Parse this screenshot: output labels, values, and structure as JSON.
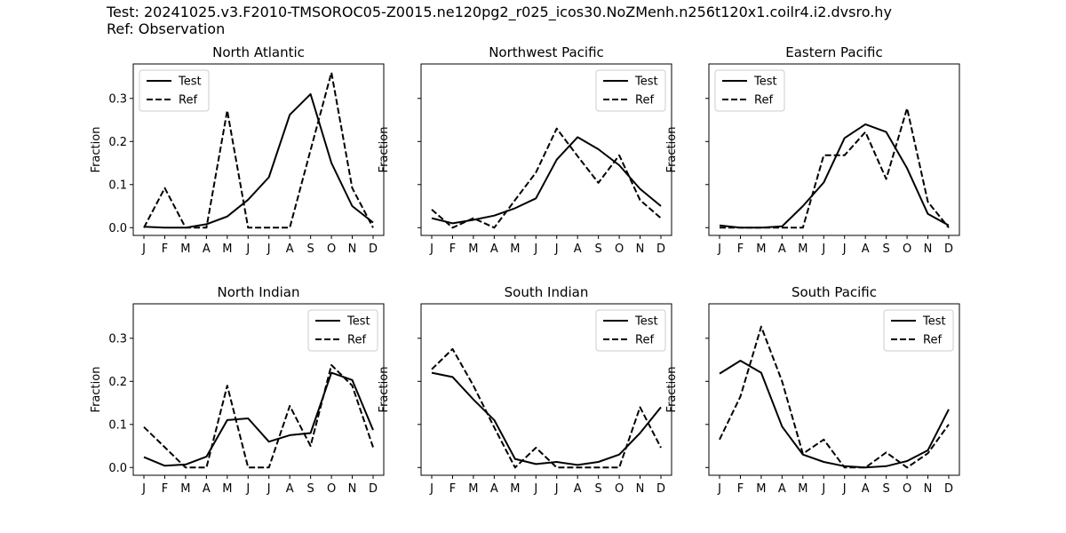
{
  "figure": {
    "test_label": "Test: 20241025.v3.F2010-TMSOROC05-Z0015.ne120pg2_r025_icos30.NoZMenh.n256t120x1.coilr4.i2.dvsro.hy",
    "ref_label": "Ref: Observation"
  },
  "chart_data": [
    {
      "type": "line",
      "title": "North Atlantic",
      "xlabel": "",
      "ylabel": "Fraction",
      "categories": [
        "J",
        "F",
        "M",
        "A",
        "M",
        "J",
        "J",
        "A",
        "S",
        "O",
        "N",
        "D"
      ],
      "ylim": [
        -0.018,
        0.38
      ],
      "yticks": [
        0.0,
        0.1,
        0.2,
        0.3
      ],
      "ytick_labels": [
        "0.0",
        "0.1",
        "0.2",
        "0.3"
      ],
      "legend": "top-left",
      "series": [
        {
          "name": "Test",
          "style": "solid",
          "values": [
            0.002,
            0.0,
            0.0,
            0.008,
            0.026,
            0.065,
            0.117,
            0.262,
            0.31,
            0.15,
            0.05,
            0.012
          ]
        },
        {
          "name": "Ref",
          "style": "dashed",
          "values": [
            0.0,
            0.092,
            0.0,
            0.0,
            0.272,
            0.0,
            0.0,
            0.0,
            0.18,
            0.36,
            0.092,
            0.0
          ]
        }
      ]
    },
    {
      "type": "line",
      "title": "Northwest Pacific",
      "xlabel": "",
      "ylabel": "Fraction",
      "categories": [
        "J",
        "F",
        "M",
        "A",
        "M",
        "J",
        "J",
        "A",
        "S",
        "O",
        "N",
        "D"
      ],
      "ylim": [
        -0.018,
        0.38
      ],
      "yticks": [
        0.0,
        0.1,
        0.2,
        0.3
      ],
      "ytick_labels": [
        "",
        "",
        "",
        ""
      ],
      "legend": "top-right",
      "series": [
        {
          "name": "Test",
          "style": "solid",
          "values": [
            0.022,
            0.01,
            0.018,
            0.028,
            0.045,
            0.068,
            0.158,
            0.21,
            0.182,
            0.145,
            0.09,
            0.05
          ]
        },
        {
          "name": "Ref",
          "style": "dashed",
          "values": [
            0.042,
            0.0,
            0.022,
            0.0,
            0.064,
            0.128,
            0.23,
            0.166,
            0.104,
            0.168,
            0.064,
            0.022
          ]
        }
      ]
    },
    {
      "type": "line",
      "title": "Eastern Pacific",
      "xlabel": "",
      "ylabel": "Fraction",
      "categories": [
        "J",
        "F",
        "M",
        "A",
        "M",
        "J",
        "J",
        "A",
        "S",
        "O",
        "N",
        "D"
      ],
      "ylim": [
        -0.018,
        0.38
      ],
      "yticks": [
        0.0,
        0.1,
        0.2,
        0.3
      ],
      "ytick_labels": [
        "",
        "",
        "",
        ""
      ],
      "legend": "top-left",
      "series": [
        {
          "name": "Test",
          "style": "solid",
          "values": [
            0.005,
            0.0,
            0.0,
            0.003,
            0.05,
            0.105,
            0.208,
            0.24,
            0.222,
            0.138,
            0.032,
            0.005
          ]
        },
        {
          "name": "Ref",
          "style": "dashed",
          "values": [
            0.0,
            0.0,
            0.0,
            0.0,
            0.0,
            0.168,
            0.168,
            0.222,
            0.113,
            0.277,
            0.06,
            0.0
          ]
        }
      ]
    },
    {
      "type": "line",
      "title": "North Indian",
      "xlabel": "",
      "ylabel": "Fraction",
      "categories": [
        "J",
        "F",
        "M",
        "A",
        "M",
        "J",
        "J",
        "A",
        "S",
        "O",
        "N",
        "D"
      ],
      "ylim": [
        -0.018,
        0.38
      ],
      "yticks": [
        0.0,
        0.1,
        0.2,
        0.3
      ],
      "ytick_labels": [
        "0.0",
        "0.1",
        "0.2",
        "0.3"
      ],
      "legend": "top-right",
      "series": [
        {
          "name": "Test",
          "style": "solid",
          "values": [
            0.024,
            0.004,
            0.007,
            0.025,
            0.11,
            0.114,
            0.06,
            0.075,
            0.08,
            0.22,
            0.203,
            0.087
          ]
        },
        {
          "name": "Ref",
          "style": "dashed",
          "values": [
            0.094,
            0.047,
            0.0,
            0.0,
            0.19,
            0.0,
            0.0,
            0.143,
            0.05,
            0.238,
            0.19,
            0.047
          ]
        }
      ]
    },
    {
      "type": "line",
      "title": "South Indian",
      "xlabel": "",
      "ylabel": "Fraction",
      "categories": [
        "J",
        "F",
        "M",
        "A",
        "M",
        "J",
        "J",
        "A",
        "S",
        "O",
        "N",
        "D"
      ],
      "ylim": [
        -0.018,
        0.38
      ],
      "yticks": [
        0.0,
        0.1,
        0.2,
        0.3
      ],
      "ytick_labels": [
        "",
        "",
        "",
        ""
      ],
      "legend": "top-right",
      "series": [
        {
          "name": "Test",
          "style": "solid",
          "values": [
            0.22,
            0.21,
            0.158,
            0.11,
            0.02,
            0.008,
            0.013,
            0.006,
            0.013,
            0.03,
            0.08,
            0.14
          ]
        },
        {
          "name": "Ref",
          "style": "dashed",
          "values": [
            0.228,
            0.275,
            0.19,
            0.093,
            0.0,
            0.046,
            0.0,
            0.0,
            0.0,
            0.0,
            0.14,
            0.046
          ]
        }
      ]
    },
    {
      "type": "line",
      "title": "South Pacific",
      "xlabel": "",
      "ylabel": "Fraction",
      "categories": [
        "J",
        "F",
        "M",
        "A",
        "M",
        "J",
        "J",
        "A",
        "S",
        "O",
        "N",
        "D"
      ],
      "ylim": [
        -0.018,
        0.38
      ],
      "yticks": [
        0.0,
        0.1,
        0.2,
        0.3
      ],
      "ytick_labels": [
        "",
        "",
        "",
        ""
      ],
      "legend": "top-right",
      "series": [
        {
          "name": "Test",
          "style": "solid",
          "values": [
            0.218,
            0.248,
            0.22,
            0.095,
            0.03,
            0.013,
            0.003,
            0.0,
            0.003,
            0.015,
            0.04,
            0.135
          ]
        },
        {
          "name": "Ref",
          "style": "dashed",
          "values": [
            0.065,
            0.165,
            0.327,
            0.2,
            0.032,
            0.065,
            0.0,
            0.0,
            0.035,
            0.0,
            0.033,
            0.1
          ]
        }
      ]
    }
  ]
}
